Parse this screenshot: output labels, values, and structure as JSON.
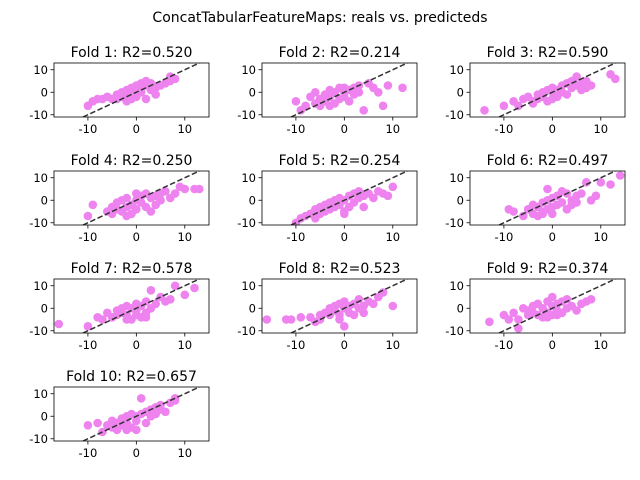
{
  "figure": {
    "suptitle": "ConcatTabularFeatureMaps: reals vs. predicteds"
  },
  "style": {
    "point_color": "#ee82ee",
    "line_color": "#333333",
    "axis_color": "#000000"
  },
  "chart_data": [
    {
      "type": "scatter",
      "title": "Fold 1: R2=0.520",
      "xlim": [
        -17,
        15
      ],
      "ylim": [
        -11,
        13
      ],
      "xticks": [
        -10,
        0,
        10
      ],
      "yticks": [
        -10,
        0,
        10
      ],
      "reference_line": "y = x (dashed)",
      "points": [
        [
          -10,
          -6
        ],
        [
          -9,
          -4
        ],
        [
          -8,
          -3
        ],
        [
          -7,
          -3
        ],
        [
          -6,
          -2
        ],
        [
          -5,
          -3
        ],
        [
          -4,
          -1
        ],
        [
          -4,
          -3
        ],
        [
          -3,
          0
        ],
        [
          -3,
          -2
        ],
        [
          -2,
          1
        ],
        [
          -2,
          -2
        ],
        [
          -1,
          2
        ],
        [
          -1,
          0
        ],
        [
          0,
          1
        ],
        [
          0,
          3
        ],
        [
          0,
          -1
        ],
        [
          1,
          2
        ],
        [
          1,
          4
        ],
        [
          1,
          0
        ],
        [
          2,
          3
        ],
        [
          2,
          5
        ],
        [
          2,
          -3
        ],
        [
          3,
          1
        ],
        [
          3,
          4
        ],
        [
          4,
          2
        ],
        [
          4,
          -1
        ],
        [
          5,
          3
        ],
        [
          6,
          4
        ],
        [
          7,
          5
        ],
        [
          7,
          7
        ],
        [
          8,
          6
        ],
        [
          -2,
          -4
        ],
        [
          -1,
          -3
        ],
        [
          0,
          -2
        ]
      ]
    },
    {
      "type": "scatter",
      "title": "Fold 2: R2=0.214",
      "xlim": [
        -17,
        15
      ],
      "ylim": [
        -11,
        13
      ],
      "xticks": [
        -10,
        0,
        10
      ],
      "yticks": [
        -10,
        0,
        10
      ],
      "reference_line": "y = x (dashed)",
      "points": [
        [
          -10,
          -4
        ],
        [
          -9,
          -8
        ],
        [
          -8,
          -6
        ],
        [
          -7,
          -2
        ],
        [
          -6,
          -5
        ],
        [
          -6,
          0
        ],
        [
          -5,
          -3
        ],
        [
          -5,
          -6
        ],
        [
          -4,
          -1
        ],
        [
          -4,
          -4
        ],
        [
          -3,
          1
        ],
        [
          -3,
          -2
        ],
        [
          -2,
          -5
        ],
        [
          -2,
          0
        ],
        [
          -1,
          2
        ],
        [
          -1,
          -3
        ],
        [
          0,
          0
        ],
        [
          0,
          -2
        ],
        [
          1,
          1
        ],
        [
          1,
          -4
        ],
        [
          2,
          2
        ],
        [
          2,
          -1
        ],
        [
          3,
          0
        ],
        [
          4,
          -8
        ],
        [
          5,
          4
        ],
        [
          6,
          2
        ],
        [
          7,
          0
        ],
        [
          8,
          -6
        ],
        [
          9,
          3
        ],
        [
          12,
          2
        ],
        [
          -3,
          -6
        ],
        [
          0,
          2
        ],
        [
          3,
          3
        ]
      ]
    },
    {
      "type": "scatter",
      "title": "Fold 3: R2=0.590",
      "xlim": [
        -17,
        15
      ],
      "ylim": [
        -11,
        13
      ],
      "xticks": [
        -10,
        0,
        10
      ],
      "yticks": [
        -10,
        0,
        10
      ],
      "reference_line": "y = x (dashed)",
      "points": [
        [
          -14,
          -8
        ],
        [
          -10,
          -6
        ],
        [
          -8,
          -4
        ],
        [
          -7,
          -6
        ],
        [
          -6,
          -3
        ],
        [
          -5,
          -2
        ],
        [
          -4,
          -4
        ],
        [
          -3,
          -1
        ],
        [
          -3,
          -3
        ],
        [
          -2,
          0
        ],
        [
          -2,
          -2
        ],
        [
          -1,
          1
        ],
        [
          -1,
          -4
        ],
        [
          0,
          0
        ],
        [
          0,
          2
        ],
        [
          1,
          1
        ],
        [
          1,
          -2
        ],
        [
          2,
          3
        ],
        [
          2,
          0
        ],
        [
          3,
          4
        ],
        [
          3,
          -1
        ],
        [
          4,
          2
        ],
        [
          4,
          5
        ],
        [
          5,
          3
        ],
        [
          5,
          7
        ],
        [
          6,
          1
        ],
        [
          6,
          4
        ],
        [
          7,
          5
        ],
        [
          7,
          2
        ],
        [
          8,
          3
        ],
        [
          12,
          8
        ],
        [
          13,
          6
        ],
        [
          0,
          -3
        ],
        [
          -4,
          -5
        ]
      ]
    },
    {
      "type": "scatter",
      "title": "Fold 4: R2=0.250",
      "xlim": [
        -17,
        15
      ],
      "ylim": [
        -11,
        13
      ],
      "xticks": [
        -10,
        0,
        10
      ],
      "yticks": [
        -10,
        0,
        10
      ],
      "reference_line": "y = x (dashed)",
      "points": [
        [
          -10,
          -7
        ],
        [
          -9,
          -2
        ],
        [
          -6,
          -5
        ],
        [
          -5,
          -3
        ],
        [
          -5,
          -6
        ],
        [
          -4,
          -1
        ],
        [
          -4,
          -4
        ],
        [
          -3,
          0
        ],
        [
          -3,
          -5
        ],
        [
          -2,
          1
        ],
        [
          -2,
          -3
        ],
        [
          -1,
          -2
        ],
        [
          -1,
          -6
        ],
        [
          0,
          0
        ],
        [
          0,
          -4
        ],
        [
          1,
          2
        ],
        [
          1,
          -1
        ],
        [
          2,
          3
        ],
        [
          2,
          -3
        ],
        [
          3,
          1
        ],
        [
          3,
          -5
        ],
        [
          4,
          2
        ],
        [
          4,
          -2
        ],
        [
          5,
          3
        ],
        [
          5,
          0
        ],
        [
          6,
          4
        ],
        [
          7,
          1
        ],
        [
          8,
          3
        ],
        [
          9,
          6
        ],
        [
          10,
          5
        ],
        [
          12,
          5
        ],
        [
          13,
          5
        ],
        [
          0,
          3
        ],
        [
          -2,
          -7
        ]
      ]
    },
    {
      "type": "scatter",
      "title": "Fold 5: R2=0.254",
      "xlim": [
        -17,
        15
      ],
      "ylim": [
        -11,
        13
      ],
      "xticks": [
        -10,
        0,
        10
      ],
      "yticks": [
        -10,
        0,
        10
      ],
      "reference_line": "y = x (dashed)",
      "points": [
        [
          -10,
          -10
        ],
        [
          -9,
          -8
        ],
        [
          -8,
          -7
        ],
        [
          -7,
          -6
        ],
        [
          -6,
          -4
        ],
        [
          -5,
          -3
        ],
        [
          -5,
          -6
        ],
        [
          -4,
          -2
        ],
        [
          -4,
          -5
        ],
        [
          -3,
          -1
        ],
        [
          -3,
          -4
        ],
        [
          -2,
          0
        ],
        [
          -2,
          -3
        ],
        [
          -1,
          1
        ],
        [
          -1,
          -2
        ],
        [
          0,
          0
        ],
        [
          0,
          -5
        ],
        [
          1,
          2
        ],
        [
          1,
          -3
        ],
        [
          2,
          3
        ],
        [
          2,
          -1
        ],
        [
          3,
          4
        ],
        [
          3,
          1
        ],
        [
          4,
          2
        ],
        [
          4,
          -3
        ],
        [
          5,
          3
        ],
        [
          6,
          1
        ],
        [
          7,
          4
        ],
        [
          8,
          3
        ],
        [
          9,
          2
        ],
        [
          10,
          6
        ],
        [
          0,
          -6
        ],
        [
          -6,
          -8
        ]
      ]
    },
    {
      "type": "scatter",
      "title": "Fold 6: R2=0.497",
      "xlim": [
        -17,
        15
      ],
      "ylim": [
        -11,
        13
      ],
      "xticks": [
        -10,
        0,
        10
      ],
      "yticks": [
        -10,
        0,
        10
      ],
      "reference_line": "y = x (dashed)",
      "points": [
        [
          -9,
          -4
        ],
        [
          -8,
          -5
        ],
        [
          -6,
          -7
        ],
        [
          -5,
          -4
        ],
        [
          -4,
          -6
        ],
        [
          -4,
          -2
        ],
        [
          -3,
          -3
        ],
        [
          -3,
          -7
        ],
        [
          -2,
          -1
        ],
        [
          -2,
          -5
        ],
        [
          -1,
          0
        ],
        [
          -1,
          -4
        ],
        [
          0,
          1
        ],
        [
          0,
          -3
        ],
        [
          0,
          -6
        ],
        [
          1,
          2
        ],
        [
          1,
          -2
        ],
        [
          2,
          4
        ],
        [
          2,
          -1
        ],
        [
          3,
          3
        ],
        [
          3,
          -4
        ],
        [
          4,
          0
        ],
        [
          4,
          -2
        ],
        [
          5,
          2
        ],
        [
          5,
          -1
        ],
        [
          6,
          3
        ],
        [
          7,
          8
        ],
        [
          8,
          0
        ],
        [
          9,
          2
        ],
        [
          10,
          8
        ],
        [
          12,
          7
        ],
        [
          14,
          11
        ],
        [
          -1,
          5
        ],
        [
          -2,
          -6
        ]
      ]
    },
    {
      "type": "scatter",
      "title": "Fold 7: R2=0.578",
      "xlim": [
        -17,
        15
      ],
      "ylim": [
        -11,
        13
      ],
      "xticks": [
        -10,
        0,
        10
      ],
      "yticks": [
        -10,
        0,
        10
      ],
      "reference_line": "y = x (dashed)",
      "points": [
        [
          -16,
          -7
        ],
        [
          -10,
          -8
        ],
        [
          -8,
          -4
        ],
        [
          -7,
          -5
        ],
        [
          -6,
          -2
        ],
        [
          -5,
          -4
        ],
        [
          -4,
          -1
        ],
        [
          -4,
          -3
        ],
        [
          -3,
          0
        ],
        [
          -3,
          -2
        ],
        [
          -2,
          1
        ],
        [
          -2,
          -3
        ],
        [
          -1,
          0
        ],
        [
          -1,
          -5
        ],
        [
          0,
          2
        ],
        [
          0,
          -1
        ],
        [
          1,
          1
        ],
        [
          1,
          -4
        ],
        [
          2,
          3
        ],
        [
          2,
          -2
        ],
        [
          3,
          0
        ],
        [
          3,
          8
        ],
        [
          4,
          2
        ],
        [
          5,
          5
        ],
        [
          6,
          3
        ],
        [
          7,
          4
        ],
        [
          8,
          10
        ],
        [
          10,
          6
        ],
        [
          12,
          9
        ],
        [
          0,
          -3
        ],
        [
          -2,
          -5
        ],
        [
          2,
          -4
        ]
      ]
    },
    {
      "type": "scatter",
      "title": "Fold 8: R2=0.523",
      "xlim": [
        -17,
        15
      ],
      "ylim": [
        -11,
        13
      ],
      "xticks": [
        -10,
        0,
        10
      ],
      "yticks": [
        -10,
        0,
        10
      ],
      "reference_line": "y = x (dashed)",
      "points": [
        [
          -16,
          -5
        ],
        [
          -12,
          -5
        ],
        [
          -11,
          -5
        ],
        [
          -9,
          -4
        ],
        [
          -7,
          -4
        ],
        [
          -6,
          -6
        ],
        [
          -5,
          -3
        ],
        [
          -5,
          -5
        ],
        [
          -4,
          -2
        ],
        [
          -3,
          0
        ],
        [
          -3,
          -3
        ],
        [
          -2,
          1
        ],
        [
          -2,
          -1
        ],
        [
          -1,
          2
        ],
        [
          -1,
          -3
        ],
        [
          0,
          0
        ],
        [
          0,
          3
        ],
        [
          0,
          -8
        ],
        [
          1,
          1
        ],
        [
          1,
          -2
        ],
        [
          2,
          2
        ],
        [
          2,
          -3
        ],
        [
          3,
          0
        ],
        [
          3,
          4
        ],
        [
          4,
          1
        ],
        [
          5,
          3
        ],
        [
          6,
          2
        ],
        [
          7,
          5
        ],
        [
          8,
          7
        ],
        [
          10,
          1
        ],
        [
          4,
          -2
        ],
        [
          -1,
          -5
        ]
      ]
    },
    {
      "type": "scatter",
      "title": "Fold 9: R2=0.374",
      "xlim": [
        -17,
        15
      ],
      "ylim": [
        -11,
        13
      ],
      "xticks": [
        -10,
        0,
        10
      ],
      "yticks": [
        -10,
        0,
        10
      ],
      "reference_line": "y = x (dashed)",
      "points": [
        [
          -13,
          -6
        ],
        [
          -10,
          -3
        ],
        [
          -9,
          -5
        ],
        [
          -8,
          -2
        ],
        [
          -7,
          -5
        ],
        [
          -7,
          -9
        ],
        [
          -6,
          0
        ],
        [
          -5,
          -1
        ],
        [
          -5,
          -3
        ],
        [
          -4,
          1
        ],
        [
          -4,
          -2
        ],
        [
          -3,
          2
        ],
        [
          -3,
          -3
        ],
        [
          -2,
          0
        ],
        [
          -2,
          -4
        ],
        [
          -1,
          3
        ],
        [
          -1,
          -2
        ],
        [
          0,
          1
        ],
        [
          0,
          5
        ],
        [
          0,
          -3
        ],
        [
          1,
          2
        ],
        [
          1,
          -1
        ],
        [
          2,
          3
        ],
        [
          2,
          -2
        ],
        [
          3,
          0
        ],
        [
          3,
          4
        ],
        [
          4,
          1
        ],
        [
          5,
          -1
        ],
        [
          6,
          2
        ],
        [
          7,
          3
        ],
        [
          8,
          4
        ],
        [
          -1,
          -4
        ],
        [
          1,
          -3
        ]
      ]
    },
    {
      "type": "scatter",
      "title": "Fold 10: R2=0.657",
      "xlim": [
        -17,
        15
      ],
      "ylim": [
        -11,
        13
      ],
      "xticks": [
        -10,
        0,
        10
      ],
      "yticks": [
        -10,
        0,
        10
      ],
      "reference_line": "y = x (dashed)",
      "points": [
        [
          -10,
          -4
        ],
        [
          -8,
          -3
        ],
        [
          -7,
          -7
        ],
        [
          -6,
          -4
        ],
        [
          -5,
          -2
        ],
        [
          -5,
          -5
        ],
        [
          -4,
          -3
        ],
        [
          -4,
          -6
        ],
        [
          -3,
          -1
        ],
        [
          -3,
          -4
        ],
        [
          -2,
          0
        ],
        [
          -2,
          -3
        ],
        [
          -1,
          1
        ],
        [
          -1,
          -5
        ],
        [
          0,
          0
        ],
        [
          0,
          -2
        ],
        [
          1,
          8
        ],
        [
          1,
          1
        ],
        [
          2,
          2
        ],
        [
          2,
          -3
        ],
        [
          3,
          3
        ],
        [
          3,
          0
        ],
        [
          4,
          4
        ],
        [
          4,
          1
        ],
        [
          5,
          5
        ],
        [
          6,
          2
        ],
        [
          7,
          6
        ],
        [
          8,
          7
        ],
        [
          8,
          8
        ],
        [
          0,
          -6
        ],
        [
          -2,
          -6
        ],
        [
          5,
          3
        ]
      ]
    }
  ]
}
